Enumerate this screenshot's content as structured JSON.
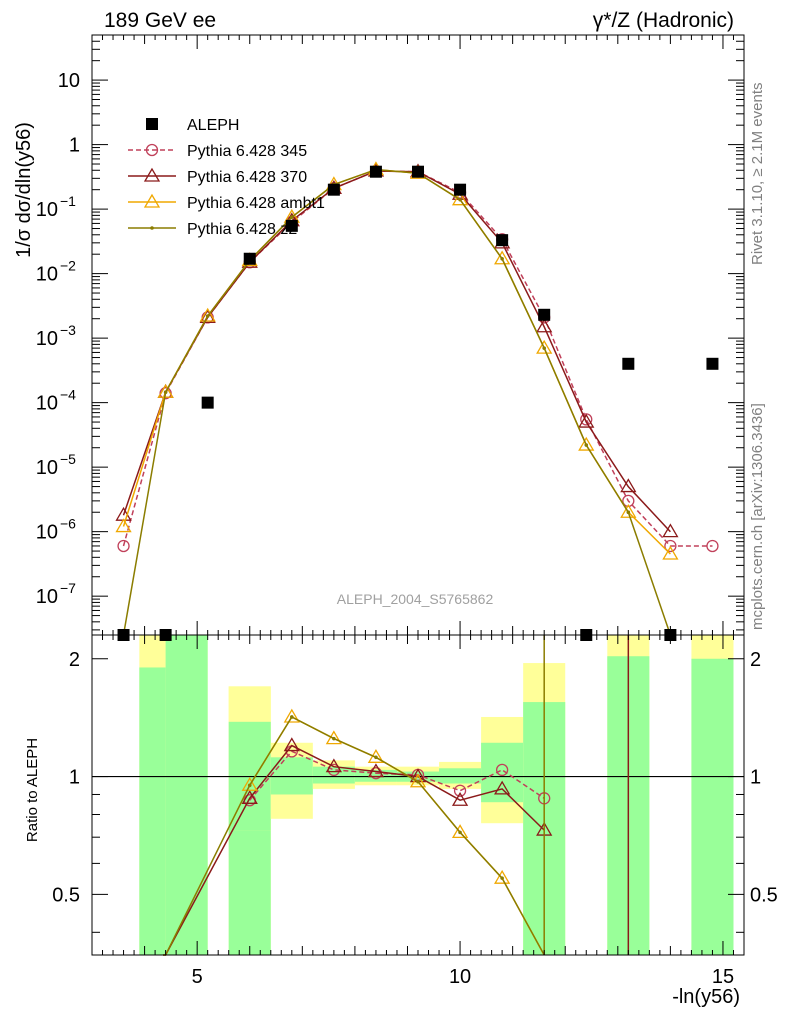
{
  "header": {
    "left": "189 GeV ee",
    "right": "γ*/Z (Hadronic)"
  },
  "side_labels": {
    "rivet": "Rivet 3.1.10, ≥ 2.1M events",
    "url": "mcplots.cern.ch [arXiv:1306.3436]"
  },
  "watermark": "ALEPH_2004_S5765862",
  "axes": {
    "ylabel_main": "1/σ  dσ/dln(y56)",
    "ylabel_ratio": "Ratio to ALEPH",
    "xlabel": "-ln(y56)"
  },
  "legend": [
    {
      "name": "ALEPH",
      "color": "#000000",
      "marker": "square",
      "dash": false
    },
    {
      "name": "Pythia 6.428 345",
      "color": "#c0405a",
      "marker": "circle",
      "dash": true
    },
    {
      "name": "Pythia 6.428 370",
      "color": "#8b1a1a",
      "marker": "triangle",
      "dash": false
    },
    {
      "name": "Pythia 6.428 ambt1",
      "color": "#f0a800",
      "marker": "triangle",
      "dash": false
    },
    {
      "name": "Pythia 6.428 z2",
      "color": "#8b7d00",
      "marker": "dot",
      "dash": false
    }
  ],
  "chart_data": {
    "type": "line",
    "xlim": [
      3.0,
      15.4
    ],
    "ylim_main": [
      2.5e-08,
      50
    ],
    "ylog": true,
    "ylim_ratio": [
      0.35,
      2.3
    ],
    "xticks": [
      5,
      10,
      15
    ],
    "yticks_main": [
      "10^{-7}",
      "10^{-6}",
      "10^{-5}",
      "10^{-4}",
      "10^{-3}",
      "10^{-2}",
      "10^{-1}",
      "1",
      "10"
    ],
    "yticks_ratio": [
      "0.5",
      "1",
      "2"
    ],
    "data": {
      "name": "ALEPH",
      "x": [
        3.6,
        4.4,
        5.2,
        6.0,
        6.8,
        7.6,
        8.4,
        9.2,
        10.0,
        10.8,
        11.6,
        12.4,
        13.2,
        14.0,
        14.8
      ],
      "y": [
        2.5e-08,
        2.5e-08,
        0.0001,
        0.017,
        0.055,
        0.2,
        0.38,
        0.38,
        0.2,
        0.033,
        0.0023,
        2.5e-08,
        0.0004,
        2.5e-08,
        0.0004
      ]
    },
    "series": [
      {
        "name": "Pythia 6.428 345",
        "x": [
          3.6,
          4.4,
          5.2,
          6.0,
          6.8,
          7.6,
          8.4,
          9.2,
          10.0,
          10.8,
          11.6,
          12.4,
          13.2,
          14.0,
          14.8
        ],
        "y": [
          6e-07,
          0.00014,
          0.0021,
          0.015,
          0.063,
          0.21,
          0.39,
          0.38,
          0.18,
          0.034,
          0.0021,
          5.5e-05,
          3e-06,
          6e-07,
          6e-07
        ]
      },
      {
        "name": "Pythia 6.428 370",
        "x": [
          3.6,
          4.4,
          5.2,
          6.0,
          6.8,
          7.6,
          8.4,
          9.2,
          10.0,
          10.8,
          11.6,
          12.4,
          13.2,
          14.0
        ],
        "y": [
          1.8e-06,
          0.000145,
          0.0021,
          0.015,
          0.066,
          0.21,
          0.39,
          0.38,
          0.17,
          0.03,
          0.0015,
          5e-05,
          5e-06,
          1e-06
        ]
      },
      {
        "name": "Pythia 6.428 ambt1",
        "x": [
          3.6,
          4.4,
          5.2,
          6.0,
          6.8,
          7.6,
          8.4,
          9.2,
          10.0,
          10.8,
          11.6,
          12.4,
          13.2,
          14.0
        ],
        "y": [
          1.2e-06,
          0.000145,
          0.0022,
          0.016,
          0.075,
          0.24,
          0.41,
          0.36,
          0.14,
          0.017,
          0.0007,
          2.2e-05,
          2e-06,
          4.5e-07
        ]
      },
      {
        "name": "Pythia 6.428 z2",
        "x": [
          3.6,
          4.4,
          5.2,
          6.0,
          6.8,
          7.6,
          8.4,
          9.2,
          10.0,
          10.8,
          11.6,
          12.4,
          13.2,
          14.0
        ],
        "y": [
          2.5e-08,
          0.000145,
          0.0022,
          0.016,
          0.075,
          0.24,
          0.41,
          0.36,
          0.14,
          0.017,
          0.0007,
          2.2e-05,
          2e-06,
          2.5e-08
        ]
      }
    ],
    "ratio": {
      "bands": [
        {
          "x0": 3.9,
          "x1": 4.4,
          "inner": [
            0.35,
            1.9
          ],
          "outer": [
            0.35,
            2.3
          ]
        },
        {
          "x0": 4.4,
          "x1": 5.2,
          "inner": [
            0.35,
            2.3
          ],
          "outer": [
            0.35,
            2.3
          ]
        },
        {
          "x0": 5.6,
          "x1": 6.4,
          "inner": [
            0.35,
            0.73
          ],
          "outer": [
            0.35,
            1.7
          ]
        },
        {
          "x0": 5.6,
          "x1": 6.4,
          "inner": [
            0.73,
            1.38
          ],
          "outer": [
            0.73,
            1.7
          ]
        },
        {
          "x0": 6.4,
          "x1": 7.2,
          "inner": [
            0.9,
            1.12
          ],
          "outer": [
            0.78,
            1.22
          ]
        },
        {
          "x0": 7.2,
          "x1": 8.0,
          "inner": [
            0.96,
            1.06
          ],
          "outer": [
            0.93,
            1.1
          ]
        },
        {
          "x0": 8.0,
          "x1": 8.8,
          "inner": [
            0.97,
            1.04
          ],
          "outer": [
            0.95,
            1.06
          ]
        },
        {
          "x0": 8.8,
          "x1": 9.6,
          "inner": [
            0.97,
            1.03
          ],
          "outer": [
            0.95,
            1.06
          ]
        },
        {
          "x0": 9.6,
          "x1": 10.4,
          "inner": [
            0.96,
            1.05
          ],
          "outer": [
            0.93,
            1.09
          ]
        },
        {
          "x0": 10.4,
          "x1": 11.2,
          "inner": [
            0.86,
            1.22
          ],
          "outer": [
            0.76,
            1.42
          ]
        },
        {
          "x0": 11.2,
          "x1": 12.0,
          "inner": [
            0.35,
            1.55
          ],
          "outer": [
            0.35,
            1.95
          ]
        },
        {
          "x0": 12.8,
          "x1": 13.6,
          "inner": [
            0.35,
            2.03
          ],
          "outer": [
            0.35,
            2.3
          ]
        },
        {
          "x0": 14.4,
          "x1": 15.2,
          "inner": [
            0.35,
            2.0
          ],
          "outer": [
            0.35,
            2.3
          ]
        }
      ],
      "series": [
        {
          "name": "Pythia 6.428 345",
          "x": [
            6.0,
            6.8,
            7.6,
            8.4,
            9.2,
            10.0,
            10.8,
            11.6
          ],
          "y": [
            0.87,
            1.16,
            1.04,
            1.02,
            1.01,
            0.92,
            1.04,
            0.88
          ]
        },
        {
          "name": "Pythia 6.428 370",
          "x": [
            4.35,
            4.4,
            6.0,
            6.8,
            7.6,
            8.4,
            9.2,
            10.0,
            10.8,
            11.6
          ],
          "y": [
            0.35,
            0.35,
            0.88,
            1.2,
            1.06,
            1.03,
            1.0,
            0.87,
            0.93,
            0.73
          ]
        },
        {
          "name": "Pythia 6.428 ambt1",
          "x": [
            6.0,
            6.8,
            7.6,
            8.4,
            9.2,
            10.0,
            10.8,
            11.6
          ],
          "y": [
            0.95,
            1.42,
            1.25,
            1.12,
            0.97,
            0.72,
            0.55,
            0.3
          ]
        },
        {
          "name": "Pythia 6.428 z2",
          "x": [
            4.35,
            4.4,
            6.0,
            6.8,
            7.6,
            8.4,
            9.2,
            10.0,
            10.8,
            11.6
          ],
          "y": [
            0.35,
            0.35,
            0.95,
            1.42,
            1.25,
            1.12,
            0.97,
            0.72,
            0.55,
            0.3
          ]
        }
      ]
    }
  }
}
